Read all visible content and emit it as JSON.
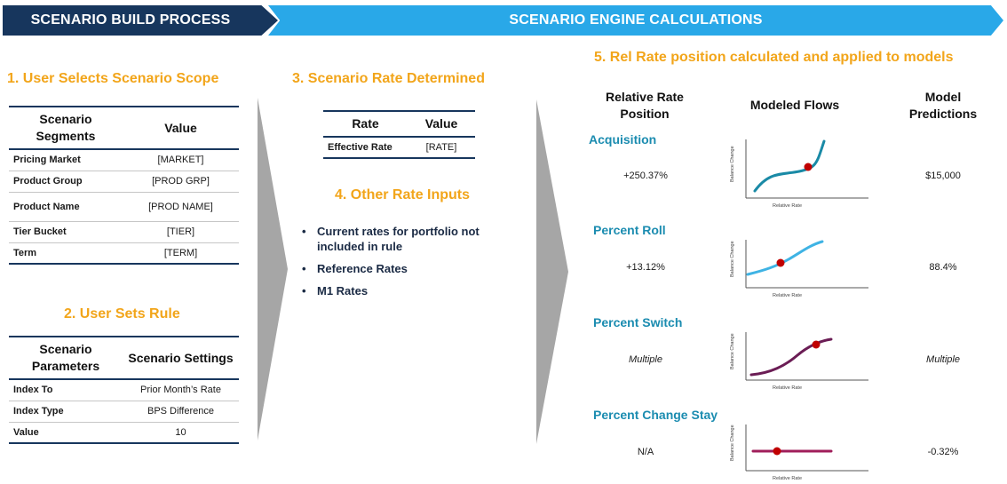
{
  "banners": {
    "left": "SCENARIO BUILD PROCESS",
    "right": "SCENARIO ENGINE CALCULATIONS"
  },
  "step1": {
    "title": "1. User Selects Scenario Scope",
    "headers": [
      "Scenario Segments",
      "Value"
    ],
    "rows": [
      {
        "key": "Pricing Market",
        "value": "[MARKET]"
      },
      {
        "key": "Product Group",
        "value": "[PROD GRP]"
      },
      {
        "key": "Product Name",
        "value": "[PROD NAME]"
      },
      {
        "key": "Tier Bucket",
        "value": "[TIER]"
      },
      {
        "key": "Term",
        "value": "[TERM]"
      }
    ]
  },
  "step2": {
    "title": "2. User Sets Rule",
    "headers": [
      "Scenario Parameters",
      "Scenario Settings"
    ],
    "rows": [
      {
        "key": "Index To",
        "value": "Prior Month’s Rate"
      },
      {
        "key": "Index Type",
        "value": "BPS Difference"
      },
      {
        "key": "Value",
        "value": "10"
      }
    ]
  },
  "step3": {
    "title": "3. Scenario Rate Determined",
    "headers": [
      "Rate",
      "Value"
    ],
    "rows": [
      {
        "key": "Effective Rate",
        "value": "[RATE]"
      }
    ]
  },
  "step4": {
    "title": "4. Other Rate Inputs",
    "bullet_glyph": "•",
    "bullets": [
      "Current rates for portfolio not included in rule",
      "Reference Rates",
      "M1 Rates"
    ]
  },
  "step5": {
    "title": "5. Rel Rate position calculated and applied to models",
    "col_headers": {
      "position": "Relative Rate Position",
      "flows": "Modeled Flows",
      "predictions": "Model Predictions"
    },
    "chart_axis": {
      "y": "Balance Change",
      "x": "Relative Rate"
    },
    "rows": [
      {
        "label": "Acquisition",
        "position": "+250.37%",
        "prediction": "$15,000",
        "italic": false,
        "curve_color": "#1a8aa6",
        "shape": "cubic"
      },
      {
        "label": "Percent Roll",
        "position": "+13.12%",
        "prediction": "88.4%",
        "italic": false,
        "curve_color": "#3fb3e4",
        "shape": "wave"
      },
      {
        "label": "Percent Switch",
        "position": "Multiple",
        "prediction": "Multiple",
        "italic": true,
        "curve_color": "#6b1d55",
        "shape": "sigmoid"
      },
      {
        "label": "Percent Change Stay",
        "position": "N/A",
        "prediction": "-0.32%",
        "italic": false,
        "curve_color": "#a01e5a",
        "shape": "flat"
      }
    ],
    "marker_color": "#c00000"
  }
}
